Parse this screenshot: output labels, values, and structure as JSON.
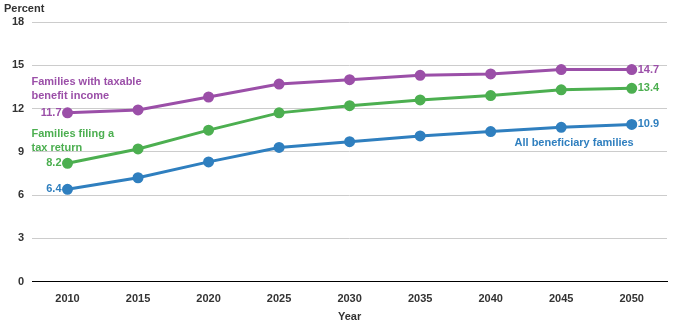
{
  "chart_data": {
    "type": "line",
    "y_label": "Percent",
    "x_label": "Year",
    "categories": [
      "2010",
      "2015",
      "2020",
      "2025",
      "2030",
      "2035",
      "2040",
      "2045",
      "2050"
    ],
    "series": [
      {
        "name": "Families with taxable benefit income",
        "color": "#9b4fa8",
        "values": [
          11.7,
          11.9,
          12.8,
          13.7,
          14.0,
          14.3,
          14.4,
          14.7,
          14.7
        ],
        "value_labels": [
          "11.7",
          null,
          null,
          null,
          null,
          null,
          null,
          null,
          "14.7"
        ]
      },
      {
        "name": "Families filing a tax return",
        "color": "#4caf50",
        "values": [
          8.2,
          9.2,
          10.5,
          11.7,
          12.2,
          12.6,
          12.9,
          13.3,
          13.4
        ],
        "value_labels": [
          "8.2",
          null,
          null,
          null,
          null,
          null,
          null,
          null,
          "13.4"
        ]
      },
      {
        "name": "All beneficiary families",
        "color": "#2f7fbf",
        "values": [
          6.4,
          7.2,
          8.3,
          9.3,
          9.7,
          10.1,
          10.4,
          10.7,
          10.9
        ],
        "value_labels": [
          "6.4",
          null,
          null,
          null,
          null,
          null,
          null,
          null,
          "10.9"
        ]
      }
    ],
    "ylim": [
      0,
      18
    ],
    "yticks": [
      0,
      3,
      6,
      9,
      12,
      15,
      18
    ],
    "grid": true,
    "marker": "circle",
    "data_labels": true
  }
}
